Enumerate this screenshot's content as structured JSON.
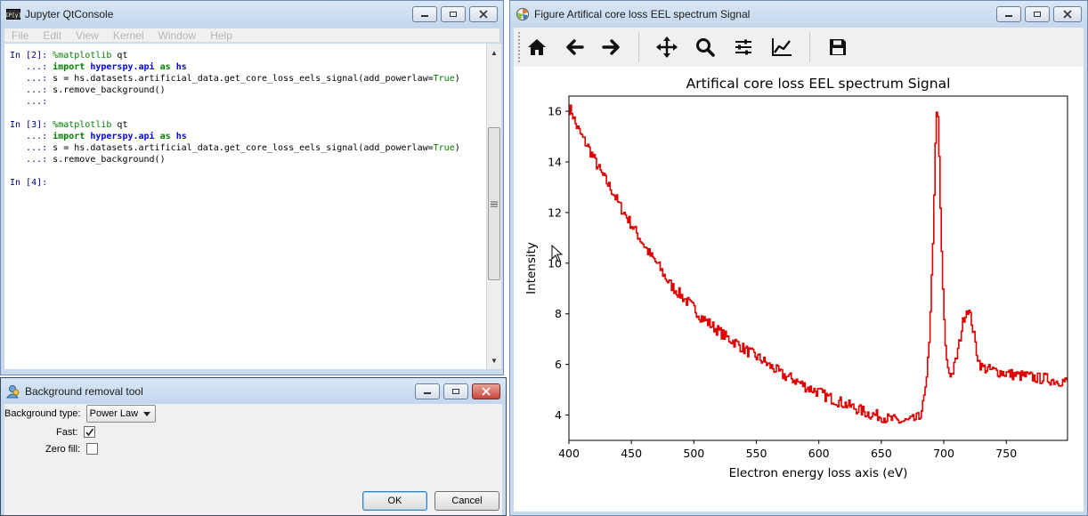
{
  "jupyter": {
    "title": "Jupyter QtConsole",
    "menu": [
      "File",
      "Edit",
      "View",
      "Kernel",
      "Window",
      "Help"
    ],
    "cells": [
      {
        "prompt": "In [2]:",
        "lines": [
          {
            "cont": "",
            "parts": [
              [
                "kwn",
                "%matplotlib"
              ],
              [
                "txt",
                " qt"
              ]
            ]
          },
          {
            "cont": "   ...:",
            "parts": [
              [
                "kw",
                "import"
              ],
              [
                "txt",
                " "
              ],
              [
                "mod",
                "hyperspy.api"
              ],
              [
                "txt",
                " "
              ],
              [
                "kw",
                "as"
              ],
              [
                "txt",
                " "
              ],
              [
                "mod",
                "hs"
              ]
            ]
          },
          {
            "cont": "   ...:",
            "parts": [
              [
                "txt",
                "s = hs.datasets.artificial_data.get_core_loss_eels_signal(add_powerlaw="
              ],
              [
                "kwn",
                "True"
              ],
              [
                "txt",
                ")"
              ]
            ]
          },
          {
            "cont": "   ...:",
            "parts": [
              [
                "txt",
                "s.remove_background()"
              ]
            ]
          },
          {
            "cont": "   ...:",
            "parts": []
          }
        ]
      },
      {
        "prompt": "In [3]:",
        "lines": [
          {
            "cont": "",
            "parts": [
              [
                "kwn",
                "%matplotlib"
              ],
              [
                "txt",
                " qt"
              ]
            ]
          },
          {
            "cont": "   ...:",
            "parts": [
              [
                "kw",
                "import"
              ],
              [
                "txt",
                " "
              ],
              [
                "mod",
                "hyperspy.api"
              ],
              [
                "txt",
                " "
              ],
              [
                "kw",
                "as"
              ],
              [
                "txt",
                " "
              ],
              [
                "mod",
                "hs"
              ]
            ]
          },
          {
            "cont": "   ...:",
            "parts": [
              [
                "txt",
                "s = hs.datasets.artificial_data.get_core_loss_eels_signal(add_powerlaw="
              ],
              [
                "kwn",
                "True"
              ],
              [
                "txt",
                ")"
              ]
            ]
          },
          {
            "cont": "   ...:",
            "parts": [
              [
                "txt",
                "s.remove_background()"
              ]
            ]
          }
        ]
      },
      {
        "prompt": "In [4]:",
        "lines": [
          {
            "cont": "",
            "parts": []
          }
        ]
      }
    ]
  },
  "bgtool": {
    "title": "Background removal tool",
    "background_type_label": "Background type:",
    "background_type_value": "Power Law",
    "fast_label": "Fast:",
    "fast_checked": true,
    "zero_fill_label": "Zero fill:",
    "zero_fill_checked": false,
    "ok_label": "OK",
    "cancel_label": "Cancel"
  },
  "figure": {
    "title": "Figure Artifical core loss EEL spectrum Signal",
    "toolbar": [
      "home-icon",
      "back-arrow-icon",
      "forward-arrow-icon",
      "pan-icon",
      "zoom-icon",
      "subplots-icon",
      "axes-edit-icon",
      "save-icon"
    ]
  },
  "chart_data": {
    "type": "line",
    "title": "Artifical core loss EEL spectrum Signal",
    "xlabel": "Electron energy loss axis (eV)",
    "ylabel": "Intensity",
    "xlim": [
      400,
      799
    ],
    "ylim": [
      3.0,
      16.6
    ],
    "xticks": [
      400,
      450,
      500,
      550,
      600,
      650,
      700,
      750
    ],
    "yticks": [
      4,
      6,
      8,
      10,
      12,
      14,
      16
    ],
    "grid": false,
    "series": [
      {
        "color": "#e00000",
        "x": [
          400,
          402,
          405,
          410,
          415,
          420,
          425,
          430,
          435,
          440,
          445,
          450,
          455,
          460,
          465,
          470,
          475,
          480,
          485,
          490,
          495,
          500,
          505,
          510,
          515,
          520,
          525,
          530,
          535,
          540,
          545,
          550,
          555,
          560,
          565,
          570,
          575,
          580,
          585,
          590,
          595,
          600,
          605,
          610,
          615,
          620,
          625,
          630,
          635,
          640,
          645,
          650,
          655,
          660,
          665,
          670,
          675,
          680,
          683,
          686,
          688,
          690,
          692,
          693,
          694,
          695,
          696,
          697,
          698,
          700,
          702,
          704,
          706,
          708,
          710,
          712,
          714,
          716,
          718,
          719,
          720,
          722,
          724,
          726,
          728,
          730,
          735,
          740,
          745,
          750,
          755,
          760,
          765,
          770,
          775,
          780,
          785,
          790,
          795,
          799
        ],
        "y": [
          16.1,
          16.0,
          15.5,
          15.0,
          14.6,
          14.1,
          13.6,
          13.2,
          12.8,
          12.3,
          11.9,
          11.5,
          11.1,
          10.7,
          10.3,
          10.0,
          9.6,
          9.2,
          8.95,
          8.7,
          8.45,
          8.2,
          7.9,
          7.7,
          7.5,
          7.3,
          7.1,
          6.95,
          6.8,
          6.6,
          6.45,
          6.3,
          6.15,
          5.95,
          5.8,
          5.6,
          5.5,
          5.4,
          5.25,
          5.1,
          5.0,
          4.9,
          4.75,
          4.65,
          4.55,
          4.45,
          4.35,
          4.25,
          4.15,
          4.05,
          4.0,
          3.95,
          3.85,
          3.8,
          3.75,
          3.75,
          3.8,
          3.9,
          4.4,
          5.3,
          7.0,
          9.4,
          12.5,
          14.6,
          15.9,
          15.7,
          14.2,
          12.2,
          10.3,
          7.6,
          6.1,
          5.7,
          5.6,
          5.9,
          6.3,
          6.8,
          7.4,
          7.9,
          8.15,
          8.2,
          8.05,
          7.7,
          7.1,
          6.5,
          6.1,
          5.9,
          5.8,
          5.75,
          5.7,
          5.65,
          5.6,
          5.55,
          5.55,
          5.5,
          5.45,
          5.45,
          5.4,
          5.35,
          5.35,
          5.3
        ]
      }
    ]
  }
}
